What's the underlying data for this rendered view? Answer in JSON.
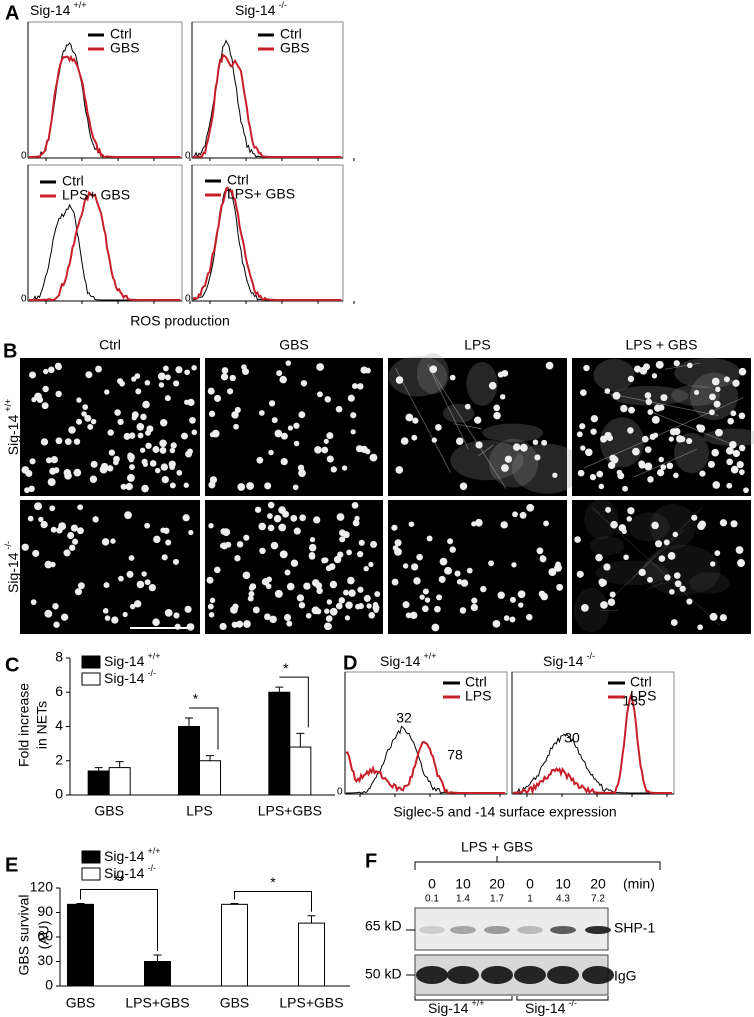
{
  "panel_a": {
    "label": "A",
    "columns": [
      {
        "name": "Sig-14",
        "sup": "+/+"
      },
      {
        "name": "Sig-14",
        "sup": "-/-"
      }
    ],
    "plots": [
      {
        "ytick": 0,
        "legend": [
          "Ctrl",
          "GBS"
        ]
      },
      {
        "ytick": 0,
        "legend": [
          "Ctrl",
          "GBS"
        ]
      },
      {
        "ytick": 0,
        "legend": [
          "Ctrl",
          "LPS+ GBS"
        ]
      },
      {
        "ytick": 0,
        "legend": [
          "Ctrl",
          "LPS+ GBS"
        ]
      }
    ],
    "xlabel": "ROS production"
  },
  "panel_b": {
    "label": "B",
    "columns": [
      "Ctrl",
      "GBS",
      "LPS",
      "LPS + GBS"
    ],
    "rows": [
      {
        "name": "Sig-14",
        "sup": "+/+"
      },
      {
        "name": "Sig-14",
        "sup": "-/-"
      }
    ]
  },
  "chart_data": [
    {
      "type": "bar",
      "panel_label": "C",
      "ylabel": [
        "Fold increase",
        "in NETs"
      ],
      "categories": [
        "GBS",
        "LPS",
        "LPS+GBS"
      ],
      "series": [
        {
          "name": "Sig-14",
          "sup": "+/+",
          "color": "#000000",
          "values": [
            1.4,
            4.0,
            6.0
          ],
          "errors": [
            0.2,
            0.5,
            0.3
          ]
        },
        {
          "name": "Sig-14",
          "sup": "-/-",
          "color": "#ffffff",
          "values": [
            1.6,
            2.0,
            2.8
          ],
          "errors": [
            0.35,
            0.3,
            0.8
          ]
        }
      ],
      "ylim": [
        0,
        8
      ],
      "yticks": [
        0,
        2,
        4,
        6,
        8
      ],
      "significance": [
        "*",
        "*"
      ]
    },
    {
      "type": "bar",
      "panel_label": "E",
      "ylabel": [
        "GBS survival",
        "(AU)"
      ],
      "categories": [
        "GBS",
        "LPS+GBS",
        "GBS",
        "LPS+GBS"
      ],
      "series": [
        {
          "name": "Sig-14",
          "sup": "+/+",
          "color": "#000000",
          "values": [
            100,
            30,
            null,
            null
          ],
          "errors": [
            1,
            8,
            null,
            null
          ]
        },
        {
          "name": "Sig-14",
          "sup": "-/-",
          "color": "#ffffff",
          "values": [
            null,
            null,
            100,
            77
          ],
          "errors": [
            null,
            null,
            1,
            9
          ]
        }
      ],
      "ylim": [
        0,
        120
      ],
      "yticks": [
        0,
        30,
        60,
        90,
        120
      ],
      "significance": [
        "**",
        "*"
      ]
    }
  ],
  "panel_d": {
    "label": "D",
    "columns": [
      {
        "name": "Sig-14",
        "sup": "+/+"
      },
      {
        "name": "Sig-14",
        "sup": "-/-"
      }
    ],
    "ytick": 0,
    "legend": [
      "Ctrl",
      "LPS"
    ],
    "annotations": [
      [
        32,
        78
      ],
      [
        30,
        135
      ]
    ],
    "xlabel": "Siglec-5 and -14  surface expression"
  },
  "panel_f": {
    "label": "F",
    "treatment": "LPS + GBS",
    "times": [
      0,
      10,
      20,
      0,
      10,
      20
    ],
    "time_unit": "(min)",
    "ratios": [
      0.1,
      1.4,
      1.7,
      1,
      4.3,
      7.2
    ],
    "markers": [
      "65 kD",
      "50 kD"
    ],
    "blots": [
      "SHP-1",
      "IgG"
    ],
    "groups": [
      {
        "name": "Sig-14",
        "sup": "+/+"
      },
      {
        "name": "Sig-14",
        "sup": "-/-"
      }
    ]
  }
}
